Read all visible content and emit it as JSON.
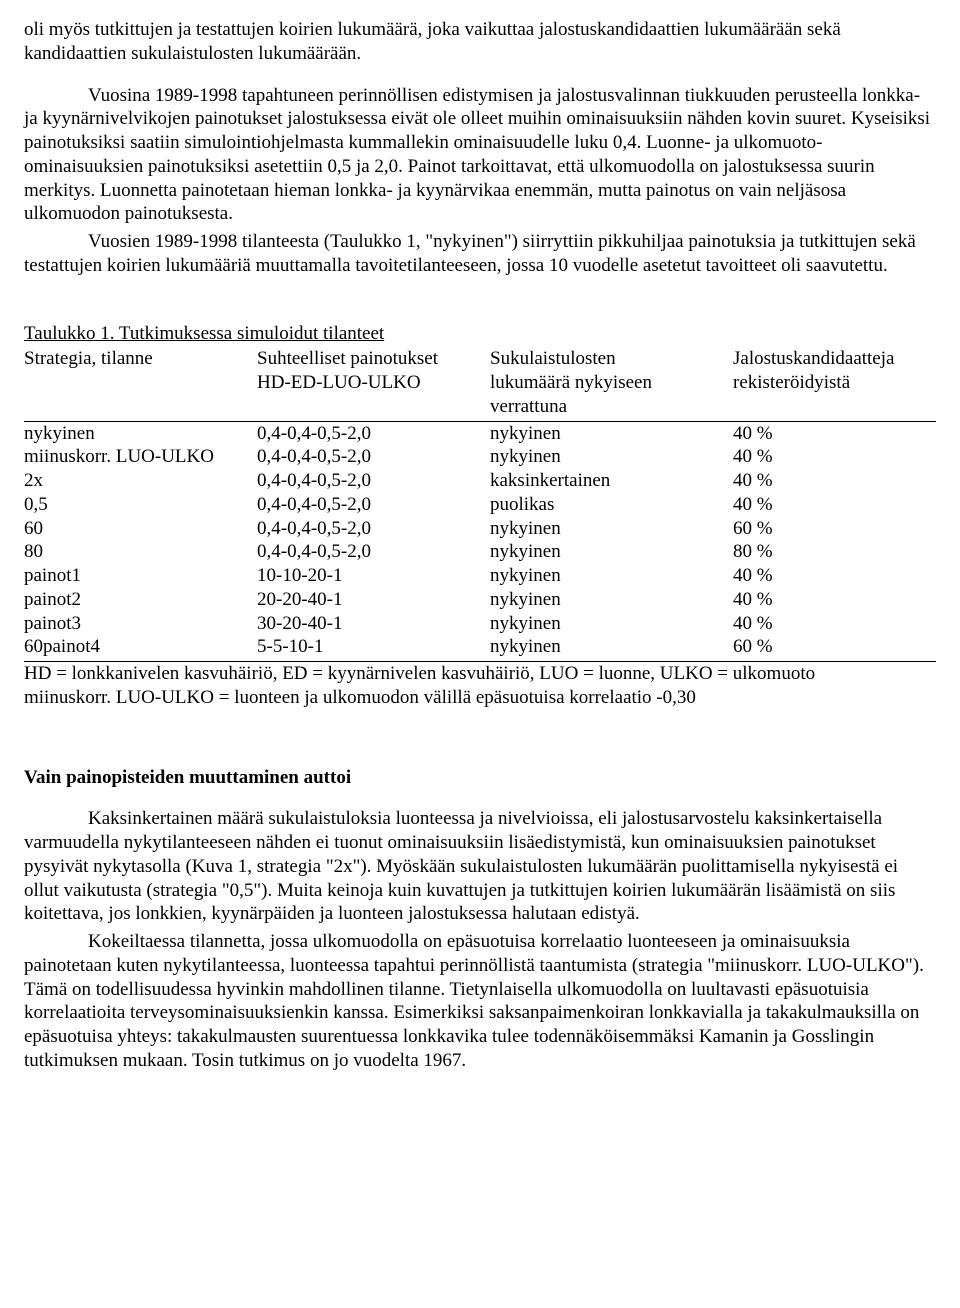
{
  "para1": "oli myös tutkittujen ja testattujen koirien lukumäärä, joka vaikuttaa jalostuskandidaattien lukumäärään sekä kandidaattien sukulaistulosten lukumäärään.",
  "para2": "Vuosina 1989-1998 tapahtuneen perinnöllisen edistymisen ja jalostusvalinnan tiukkuuden perusteella lonkka- ja kyynärnivelvikojen painotukset jalostuksessa eivät ole olleet muihin ominaisuuksiin nähden kovin suuret. Kyseisiksi painotuksiksi saatiin simulointiohjelmasta kummallekin ominaisuudelle luku 0,4. Luonne- ja ulkomuoto-ominaisuuksien painotuksiksi asetettiin 0,5 ja 2,0. Painot tarkoittavat, että ulkomuodolla on jalostuksessa suurin merkitys. Luonnetta painotetaan hieman lonkka- ja kyynärvikaa enemmän, mutta painotus on vain neljäsosa ulkomuodon painotuksesta.",
  "para3": "Vuosien 1989-1998 tilanteesta (Taulukko 1, \"nykyinen\") siirryttiin pikkuhiljaa painotuksia ja tutkittujen sekä testattujen koirien lukumääriä muuttamalla tavoitetilanteeseen, jossa 10 vuodelle asetetut tavoitteet oli saavutettu.",
  "table": {
    "title": "Taulukko 1. Tutkimuksessa simuloidut tilanteet",
    "headers": {
      "c0": "Strategia, tilanne",
      "c1a": "Suhteelliset painotukset",
      "c1b": "HD-ED-LUO-ULKO",
      "c2a": "Sukulaistulosten",
      "c2b": "lukumäärä nykyiseen",
      "c2c": "verrattuna",
      "c3a": "Jalostuskandidaatteja",
      "c3b": "rekisteröidyistä"
    },
    "rows": [
      {
        "c0": "nykyinen",
        "c1": "0,4-0,4-0,5-2,0",
        "c2": "nykyinen",
        "c3": "40 %"
      },
      {
        "c0": "miinuskorr. LUO-ULKO",
        "c1": "0,4-0,4-0,5-2,0",
        "c2": "nykyinen",
        "c3": "40 %"
      },
      {
        "c0": "2x",
        "c1": "0,4-0,4-0,5-2,0",
        "c2": "kaksinkertainen",
        "c3": "40 %"
      },
      {
        "c0": "0,5",
        "c1": "0,4-0,4-0,5-2,0",
        "c2": "puolikas",
        "c3": "40 %"
      },
      {
        "c0": "60",
        "c1": "0,4-0,4-0,5-2,0",
        "c2": "nykyinen",
        "c3": "60 %"
      },
      {
        "c0": "80",
        "c1": "0,4-0,4-0,5-2,0",
        "c2": "nykyinen",
        "c3": "80 %"
      },
      {
        "c0": "painot1",
        "c1": "10-10-20-1",
        "c2": "nykyinen",
        "c3": "40 %"
      },
      {
        "c0": "painot2",
        "c1": "20-20-40-1",
        "c2": "nykyinen",
        "c3": "40 %"
      },
      {
        "c0": "painot3",
        "c1": "30-20-40-1",
        "c2": "nykyinen",
        "c3": "40 %"
      },
      {
        "c0": "60painot4",
        "c1": "5-5-10-1",
        "c2": "nykyinen",
        "c3": "60 %"
      }
    ],
    "foot1": "HD = lonkkanivelen kasvuhäiriö, ED = kyynärnivelen kasvuhäiriö, LUO = luonne, ULKO = ulkomuoto",
    "foot2": "miinuskorr. LUO-ULKO = luonteen ja ulkomuodon välillä epäsuotuisa korrelaatio -0,30"
  },
  "heading2": "Vain painopisteiden muuttaminen auttoi",
  "para4": "Kaksinkertainen määrä sukulaistuloksia luonteessa ja nivelvioissa, eli jalostusarvostelu kaksinkertaisella varmuudella nykytilanteeseen nähden ei tuonut ominaisuuksiin lisäedistymistä, kun ominaisuuksien painotukset pysyivät nykytasolla (Kuva 1, strategia \"2x\"). Myöskään sukulaistulosten lukumäärän puolittamisella nykyisestä ei ollut vaikutusta (strategia \"0,5\"). Muita keinoja kuin kuvattujen ja tutkittujen koirien lukumäärän lisäämistä on siis koitettava, jos lonkkien, kyynärpäiden ja luonteen jalostuksessa halutaan edistyä.",
  "para5": "Kokeiltaessa tilannetta, jossa ulkomuodolla on epäsuotuisa korrelaatio luonteeseen ja ominaisuuksia painotetaan kuten nykytilanteessa, luonteessa tapahtui perinnöllistä taantumista (strategia \"miinuskorr. LUO-ULKO\"). Tämä on todellisuudessa hyvinkin mahdollinen tilanne. Tietynlaisella ulkomuodolla on luultavasti epäsuotuisia korrelaatioita terveysominaisuuksienkin kanssa. Esimerkiksi saksanpaimenkoiran lonkkavialla ja takakulmauksilla on epäsuotuisa yhteys: takakulmausten suurentuessa lonkkavika tulee todennäköisemmäksi Kamanin ja Gosslingin tutkimuksen mukaan. Tosin tutkimus on jo vuodelta 1967."
}
